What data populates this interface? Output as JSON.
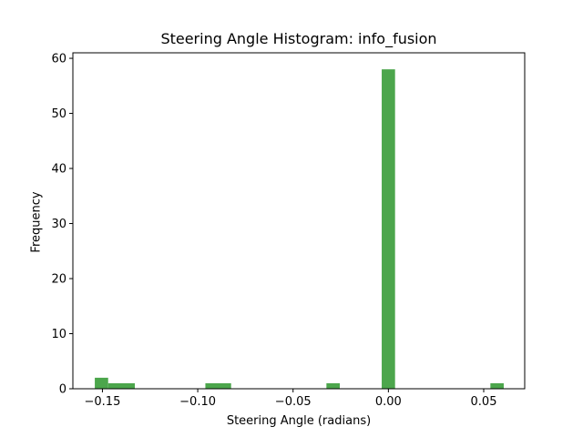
{
  "chart_data": {
    "type": "bar",
    "title": "Steering Angle Histogram: info_fusion",
    "xlabel": "Steering Angle (radians)",
    "ylabel": "Frequency",
    "xlim": [
      -0.1655,
      0.0715
    ],
    "ylim": [
      0,
      61
    ],
    "xticks": [
      -0.15,
      -0.1,
      -0.05,
      0.0,
      0.05
    ],
    "xtick_labels": [
      "−0.15",
      "−0.10",
      "−0.05",
      "0.00",
      "0.05"
    ],
    "yticks": [
      0,
      10,
      20,
      30,
      40,
      50,
      60
    ],
    "ytick_labels": [
      "0",
      "10",
      "20",
      "30",
      "40",
      "50",
      "60"
    ],
    "bar_color": "#4ca64c",
    "bins": [
      {
        "x0": -0.154,
        "x1": -0.147,
        "count": 2
      },
      {
        "x0": -0.147,
        "x1": -0.133,
        "count": 1
      },
      {
        "x0": -0.096,
        "x1": -0.0825,
        "count": 1
      },
      {
        "x0": -0.0325,
        "x1": -0.0255,
        "count": 1
      },
      {
        "x0": -0.0035,
        "x1": 0.0035,
        "count": 58
      },
      {
        "x0": 0.0535,
        "x1": 0.0605,
        "count": 1
      }
    ],
    "grid": false,
    "legend": "none"
  }
}
